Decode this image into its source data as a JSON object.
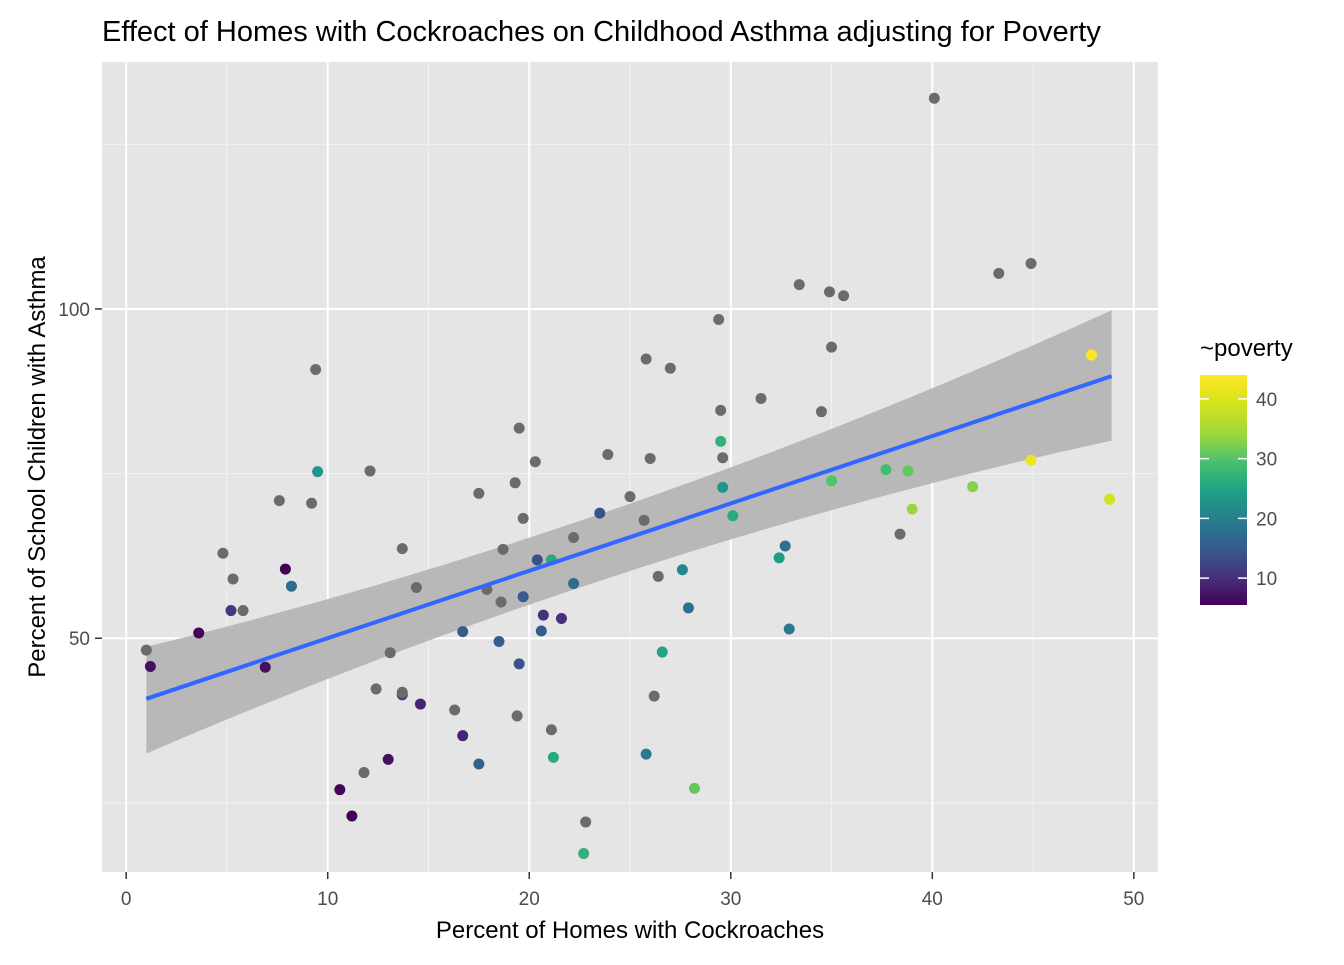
{
  "chart_data": {
    "type": "scatter",
    "title": "Effect of Homes with Cockroaches on Childhood Asthma adjusting for Poverty",
    "xlabel": "Percent of Homes with Cockroaches",
    "ylabel": "Percent of School Children with Asthma",
    "xlim": [
      -1.2,
      51.2
    ],
    "ylim": [
      14.5,
      137.5
    ],
    "x_ticks": [
      0,
      10,
      20,
      30,
      40,
      50
    ],
    "y_ticks": [
      50,
      100
    ],
    "grid": true,
    "legend": {
      "title": "~poverty",
      "type": "colorbar",
      "position": "right",
      "range": [
        5.5,
        44
      ],
      "ticks": [
        10,
        20,
        30,
        40
      ],
      "colormap": "viridis"
    },
    "na_color": "#6b6b6b",
    "colors": {
      "panel": "#e5e5e5",
      "grid_major": "#ffffff",
      "trend_line": "#3366ff",
      "ribbon": "#b3b3b3"
    },
    "trend": {
      "x": [
        1.0,
        48.9
      ],
      "y": [
        40.8,
        89.8
      ],
      "ci_upper": [
        48.7,
        99.8
      ],
      "ci_lower": [
        32.5,
        80.0
      ]
    },
    "points": [
      {
        "x": 1.0,
        "y": 48.2,
        "poverty": null
      },
      {
        "x": 1.2,
        "y": 45.7,
        "poverty": 7
      },
      {
        "x": 3.6,
        "y": 50.8,
        "poverty": 6
      },
      {
        "x": 4.8,
        "y": 62.9,
        "poverty": null
      },
      {
        "x": 5.2,
        "y": 54.2,
        "poverty": 11
      },
      {
        "x": 5.3,
        "y": 59.0,
        "poverty": null
      },
      {
        "x": 5.8,
        "y": 54.2,
        "poverty": null
      },
      {
        "x": 6.9,
        "y": 45.6,
        "poverty": 7
      },
      {
        "x": 7.6,
        "y": 70.9,
        "poverty": null
      },
      {
        "x": 7.9,
        "y": 60.5,
        "poverty": 5.5
      },
      {
        "x": 8.2,
        "y": 57.9,
        "poverty": 17
      },
      {
        "x": 9.2,
        "y": 70.5,
        "poverty": null
      },
      {
        "x": 9.4,
        "y": 90.8,
        "poverty": null
      },
      {
        "x": 9.5,
        "y": 75.3,
        "poverty": 23
      },
      {
        "x": 10.6,
        "y": 27.0,
        "poverty": 6
      },
      {
        "x": 11.2,
        "y": 23.0,
        "poverty": 5.5
      },
      {
        "x": 11.8,
        "y": 29.6,
        "poverty": null
      },
      {
        "x": 12.1,
        "y": 75.4,
        "poverty": null
      },
      {
        "x": 12.4,
        "y": 42.3,
        "poverty": null
      },
      {
        "x": 13.0,
        "y": 31.6,
        "poverty": 7
      },
      {
        "x": 13.1,
        "y": 47.8,
        "poverty": null
      },
      {
        "x": 13.7,
        "y": 63.6,
        "poverty": null
      },
      {
        "x": 13.7,
        "y": 41.4,
        "poverty": 13
      },
      {
        "x": 13.7,
        "y": 41.8,
        "poverty": null
      },
      {
        "x": 14.4,
        "y": 57.7,
        "poverty": null
      },
      {
        "x": 14.6,
        "y": 40.0,
        "poverty": 9
      },
      {
        "x": 16.3,
        "y": 39.1,
        "poverty": null
      },
      {
        "x": 16.7,
        "y": 35.2,
        "poverty": 9
      },
      {
        "x": 16.7,
        "y": 51.0,
        "poverty": 15
      },
      {
        "x": 17.5,
        "y": 72.0,
        "poverty": null
      },
      {
        "x": 17.5,
        "y": 30.9,
        "poverty": 16
      },
      {
        "x": 17.9,
        "y": 57.4,
        "poverty": null
      },
      {
        "x": 18.5,
        "y": 49.5,
        "poverty": 15
      },
      {
        "x": 18.6,
        "y": 55.5,
        "poverty": null
      },
      {
        "x": 18.7,
        "y": 63.5,
        "poverty": null
      },
      {
        "x": 19.3,
        "y": 73.6,
        "poverty": null
      },
      {
        "x": 19.4,
        "y": 38.2,
        "poverty": null
      },
      {
        "x": 19.5,
        "y": 81.9,
        "poverty": null
      },
      {
        "x": 19.5,
        "y": 46.1,
        "poverty": 14
      },
      {
        "x": 19.7,
        "y": 68.2,
        "poverty": null
      },
      {
        "x": 19.7,
        "y": 56.3,
        "poverty": 15
      },
      {
        "x": 20.3,
        "y": 76.8,
        "poverty": null
      },
      {
        "x": 20.4,
        "y": 61.9,
        "poverty": 14
      },
      {
        "x": 20.6,
        "y": 51.1,
        "poverty": 15
      },
      {
        "x": 20.7,
        "y": 53.5,
        "poverty": 10
      },
      {
        "x": 21.1,
        "y": 61.9,
        "poverty": 26
      },
      {
        "x": 21.1,
        "y": 36.1,
        "poverty": null
      },
      {
        "x": 21.2,
        "y": 31.9,
        "poverty": 26
      },
      {
        "x": 21.6,
        "y": 53.0,
        "poverty": 10
      },
      {
        "x": 22.2,
        "y": 58.3,
        "poverty": 17
      },
      {
        "x": 22.2,
        "y": 65.3,
        "poverty": null
      },
      {
        "x": 22.8,
        "y": 22.1,
        "poverty": null
      },
      {
        "x": 22.7,
        "y": 17.3,
        "poverty": 27
      },
      {
        "x": 23.5,
        "y": 69.0,
        "poverty": 14
      },
      {
        "x": 23.9,
        "y": 77.9,
        "poverty": null
      },
      {
        "x": 25.0,
        "y": 71.5,
        "poverty": null
      },
      {
        "x": 25.7,
        "y": 67.9,
        "poverty": null
      },
      {
        "x": 25.8,
        "y": 92.4,
        "poverty": null
      },
      {
        "x": 25.8,
        "y": 32.4,
        "poverty": 19
      },
      {
        "x": 26.0,
        "y": 77.3,
        "poverty": null
      },
      {
        "x": 26.2,
        "y": 41.2,
        "poverty": null
      },
      {
        "x": 26.4,
        "y": 59.4,
        "poverty": null
      },
      {
        "x": 26.6,
        "y": 47.9,
        "poverty": 25
      },
      {
        "x": 27.0,
        "y": 91.0,
        "poverty": null
      },
      {
        "x": 27.6,
        "y": 60.4,
        "poverty": 21
      },
      {
        "x": 27.9,
        "y": 54.6,
        "poverty": 18
      },
      {
        "x": 28.2,
        "y": 27.2,
        "poverty": 31
      },
      {
        "x": 29.4,
        "y": 98.4,
        "poverty": null
      },
      {
        "x": 29.5,
        "y": 84.6,
        "poverty": null
      },
      {
        "x": 29.5,
        "y": 79.9,
        "poverty": 27
      },
      {
        "x": 29.6,
        "y": 77.4,
        "poverty": null
      },
      {
        "x": 29.6,
        "y": 72.9,
        "poverty": 23
      },
      {
        "x": 30.1,
        "y": 68.6,
        "poverty": 26
      },
      {
        "x": 31.5,
        "y": 86.4,
        "poverty": null
      },
      {
        "x": 32.4,
        "y": 62.2,
        "poverty": 24
      },
      {
        "x": 32.7,
        "y": 64.0,
        "poverty": 18
      },
      {
        "x": 32.9,
        "y": 51.4,
        "poverty": 19
      },
      {
        "x": 33.4,
        "y": 103.7,
        "poverty": null
      },
      {
        "x": 34.5,
        "y": 84.4,
        "poverty": null
      },
      {
        "x": 34.9,
        "y": 102.6,
        "poverty": null
      },
      {
        "x": 35.0,
        "y": 94.2,
        "poverty": null
      },
      {
        "x": 35.0,
        "y": 73.9,
        "poverty": 30
      },
      {
        "x": 35.6,
        "y": 102.0,
        "poverty": null
      },
      {
        "x": 37.7,
        "y": 75.6,
        "poverty": 29
      },
      {
        "x": 38.4,
        "y": 65.8,
        "poverty": null
      },
      {
        "x": 38.8,
        "y": 75.4,
        "poverty": 31
      },
      {
        "x": 39.0,
        "y": 69.6,
        "poverty": 34
      },
      {
        "x": 40.1,
        "y": 132.0,
        "poverty": null
      },
      {
        "x": 42.0,
        "y": 73.0,
        "poverty": 33
      },
      {
        "x": 43.3,
        "y": 105.4,
        "poverty": null
      },
      {
        "x": 44.9,
        "y": 106.9,
        "poverty": null
      },
      {
        "x": 44.9,
        "y": 77.0,
        "poverty": 42
      },
      {
        "x": 47.9,
        "y": 93.0,
        "poverty": 44
      },
      {
        "x": 48.8,
        "y": 71.1,
        "poverty": 39
      }
    ]
  }
}
